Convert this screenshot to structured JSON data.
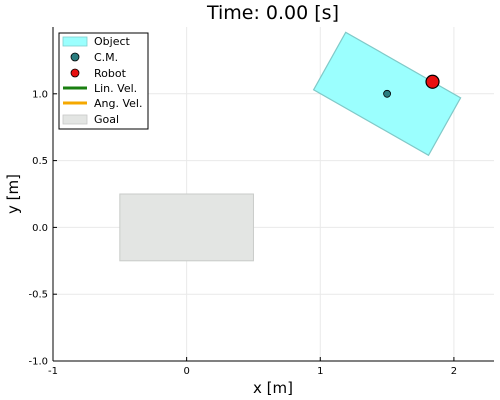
{
  "chart_data": {
    "type": "scatter",
    "title": "Time: 0.00 [s]",
    "xlabel": "x [m]",
    "ylabel": "y [m]",
    "xlim": [
      -1,
      2.3
    ],
    "ylim": [
      -1,
      1.5
    ],
    "x_ticks": [
      {
        "value": -1,
        "label": "-1"
      },
      {
        "value": 0,
        "label": "0"
      },
      {
        "value": 1,
        "label": "1"
      },
      {
        "value": 2,
        "label": "2"
      }
    ],
    "y_ticks": [
      {
        "value": -1,
        "label": "-1.0"
      },
      {
        "value": -0.5,
        "label": "-0.5"
      },
      {
        "value": 0,
        "label": "0.0"
      },
      {
        "value": 0.5,
        "label": "0.5"
      },
      {
        "value": 1,
        "label": "1.0"
      }
    ],
    "grid": true,
    "legend_position": "top-left",
    "object": {
      "name": "Object",
      "color": "#9bfffe",
      "polygon": [
        [
          0.95,
          1.03
        ],
        [
          1.19,
          1.46
        ],
        [
          2.05,
          0.97
        ],
        [
          1.81,
          0.54
        ]
      ]
    },
    "center_of_mass": {
      "name": "C.M.",
      "x": 1.5,
      "y": 1.0,
      "color": "#2a7d7f"
    },
    "robot": {
      "name": "Robot",
      "x": 1.84,
      "y": 1.09,
      "color": "#e81010"
    },
    "linear_velocity": {
      "name": "Lin. Vel.",
      "color": "#1a7f10"
    },
    "angular_velocity": {
      "name": "Ang. Vel.",
      "color": "#f5a800"
    },
    "goal": {
      "name": "Goal",
      "color": "#e3e5e3",
      "x_range": [
        -0.5,
        0.5
      ],
      "y_range": [
        -0.25,
        0.25
      ]
    }
  }
}
